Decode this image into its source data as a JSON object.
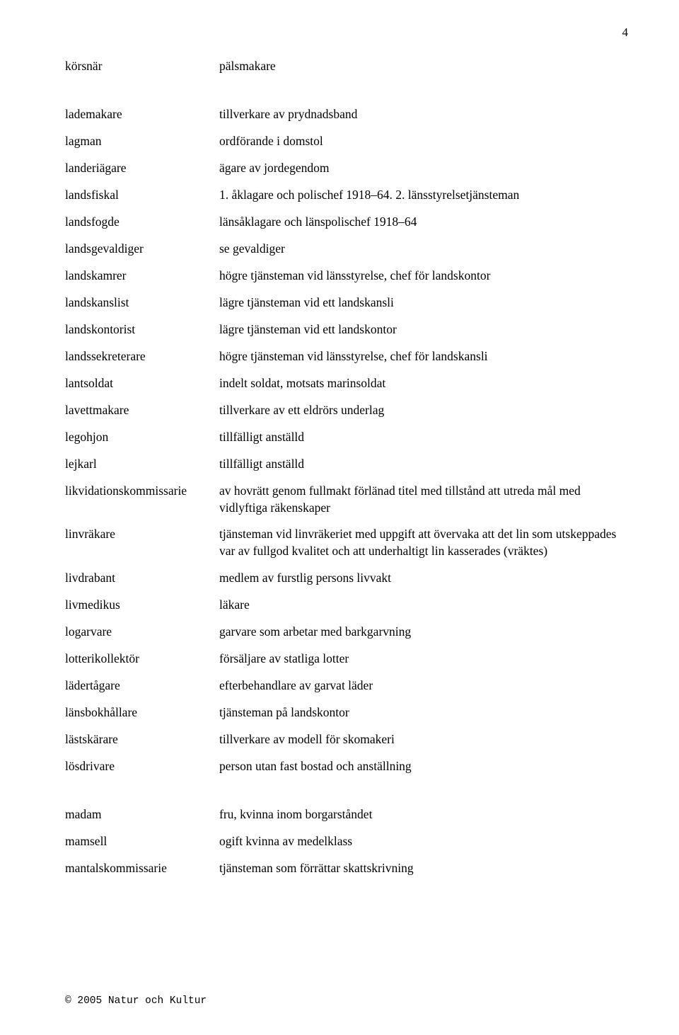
{
  "page_number": "4",
  "footer": "© 2005 Natur och Kultur",
  "entries": [
    {
      "term": "körsnär",
      "def": "pälsmakare"
    },
    {
      "gap": true
    },
    {
      "term": "lademakare",
      "def": "tillverkare av prydnadsband"
    },
    {
      "term": "lagman",
      "def": "ordförande i domstol"
    },
    {
      "term": "landeriägare",
      "def": "ägare av jordegendom"
    },
    {
      "term": "landsfiskal",
      "def": "1. åklagare och polischef 1918–64. 2. länsstyrelsetjänsteman"
    },
    {
      "term": "landsfogde",
      "def": "länsåklagare och länspolischef 1918–64"
    },
    {
      "term": "landsgevaldiger",
      "def": "se gevaldiger"
    },
    {
      "term": "landskamrer",
      "def": "högre tjänsteman vid länsstyrelse, chef för landskontor"
    },
    {
      "term": "landskanslist",
      "def": "lägre tjänsteman vid ett landskansli"
    },
    {
      "term": "landskontorist",
      "def": "lägre tjänsteman vid ett landskontor"
    },
    {
      "term": "landssekreterare",
      "def": "högre tjänsteman vid länsstyrelse, chef för landskansli"
    },
    {
      "term": "lantsoldat",
      "def": "indelt soldat, motsats marinsoldat"
    },
    {
      "term": "lavettmakare",
      "def": "tillverkare av ett eldrörs underlag"
    },
    {
      "term": "legohjon",
      "def": "tillfälligt anställd"
    },
    {
      "term": "lejkarl",
      "def": "tillfälligt anställd"
    },
    {
      "term": "likvidationskommissarie",
      "def": "av hovrätt genom fullmakt förlänad titel med tillstånd att utreda mål med vidlyftiga räkenskaper"
    },
    {
      "term": "linvräkare",
      "def": "tjänsteman vid linvräkeriet med uppgift att övervaka att det lin som utskeppades var av fullgod kvalitet och att underhaltigt lin kasserades (vräktes)"
    },
    {
      "term": "livdrabant",
      "def": "medlem av furstlig persons livvakt"
    },
    {
      "term": "livmedikus",
      "def": "läkare"
    },
    {
      "term": "logarvare",
      "def": "garvare som arbetar med barkgarvning"
    },
    {
      "term": "lotterikollektör",
      "def": "försäljare av statliga lotter"
    },
    {
      "term": "lädertågare",
      "def": "efterbehandlare av garvat läder"
    },
    {
      "term": "länsbokhållare",
      "def": "tjänsteman på landskontor"
    },
    {
      "term": "lästskärare",
      "def": "tillverkare av modell för skomakeri"
    },
    {
      "term": "lösdrivare",
      "def": "person utan fast bostad och anställning"
    },
    {
      "gap": true
    },
    {
      "term": "madam",
      "def": "fru, kvinna inom borgarståndet"
    },
    {
      "term": "mamsell",
      "def": "ogift kvinna av medelklass"
    },
    {
      "term": "mantalskommissarie",
      "def": "tjänsteman som förrättar skattskrivning"
    }
  ]
}
